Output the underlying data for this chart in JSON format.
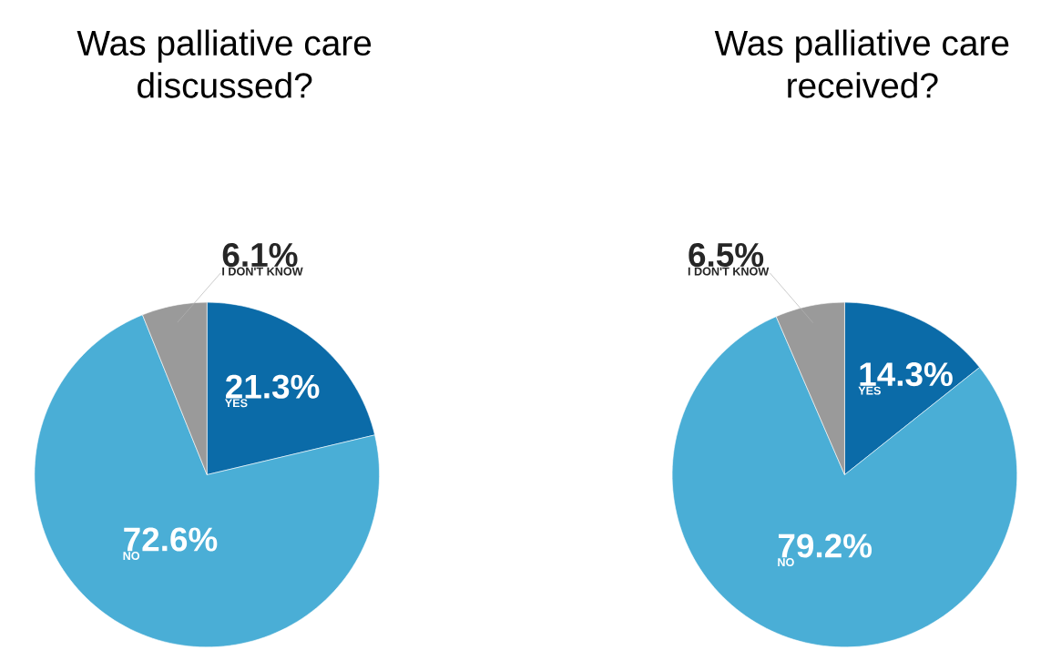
{
  "chart_data": [
    {
      "type": "pie",
      "title": "Was palliative care discussed?",
      "categories": [
        "YES",
        "NO",
        "I DON'T KNOW"
      ],
      "values": [
        21.3,
        72.6,
        6.1
      ],
      "colors": [
        "#0b6ba8",
        "#4aaed6",
        "#9a9a9a"
      ],
      "value_labels": [
        "21.3%",
        "72.6%",
        "6.1%"
      ]
    },
    {
      "type": "pie",
      "title": "Was palliative care received?",
      "categories": [
        "YES",
        "NO",
        "I DON'T KNOW"
      ],
      "values": [
        14.3,
        79.2,
        6.5
      ],
      "colors": [
        "#0b6ba8",
        "#4aaed6",
        "#9a9a9a"
      ],
      "value_labels": [
        "14.3%",
        "79.2%",
        "6.5%"
      ]
    }
  ]
}
